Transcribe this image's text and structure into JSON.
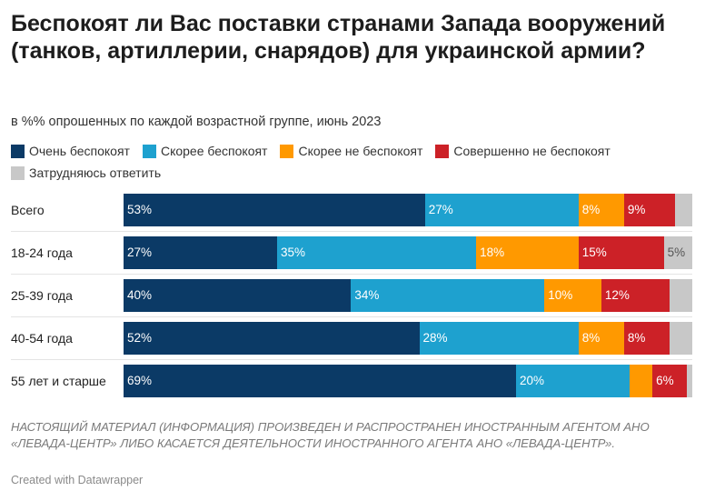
{
  "title": "Беспокоят ли Вас поставки странами Запада вооружений (танков, артиллерии, снарядов) для украинской армии?",
  "subtitle": "в %% опрошенных по каждой возрастной группе, июнь 2023",
  "colors": {
    "very_concerned": "#0b3a66",
    "rather_concerned": "#1ea1cf",
    "rather_not_concerned": "#ff9900",
    "not_at_all_concerned": "#cc2127",
    "hard_to_say": "#c8c8c8"
  },
  "chart_data": {
    "type": "bar",
    "orientation": "horizontal",
    "stacked": true,
    "value_unit": "%",
    "xlim": [
      0,
      100
    ],
    "grid": false,
    "legend_placement": "top",
    "categories": [
      "Всего",
      "18-24 года",
      "25-39 года",
      "40-54 года",
      "55 лет и старше"
    ],
    "series": [
      {
        "name": "Очень беспокоят",
        "values": [
          53,
          27,
          40,
          52,
          69
        ],
        "labels": [
          "53%",
          "27%",
          "40%",
          "52%",
          "69%"
        ]
      },
      {
        "name": "Скорее беспокоят",
        "values": [
          27,
          35,
          34,
          28,
          20
        ],
        "labels": [
          "27%",
          "35%",
          "34%",
          "28%",
          "20%"
        ]
      },
      {
        "name": "Скорее не беспокоят",
        "values": [
          8,
          18,
          10,
          8,
          4
        ],
        "labels": [
          "8%",
          "18%",
          "10%",
          "8%",
          ""
        ]
      },
      {
        "name": "Совершенно не беспокоят",
        "values": [
          9,
          15,
          12,
          8,
          6
        ],
        "labels": [
          "9%",
          "15%",
          "12%",
          "8%",
          "6%"
        ]
      },
      {
        "name": "Затрудняюсь ответить",
        "values": [
          3,
          5,
          4,
          4,
          1
        ],
        "labels": [
          "",
          "5%",
          "",
          "",
          ""
        ]
      }
    ]
  },
  "disclaimer": "НАСТОЯЩИЙ МАТЕРИАЛ (ИНФОРМАЦИЯ) ПРОИЗВЕДЕН И РАСПРОСТРАНЕН ИНОСТРАННЫМ АГЕНТОМ АНО «ЛЕВАДА-ЦЕНТР» ЛИБО КАСАЕТСЯ ДЕЯТЕЛЬНОСТИ ИНОСТРАННОГО АГЕНТА АНО «ЛЕВАДА-ЦЕНТР».",
  "footer": "Created with Datawrapper"
}
